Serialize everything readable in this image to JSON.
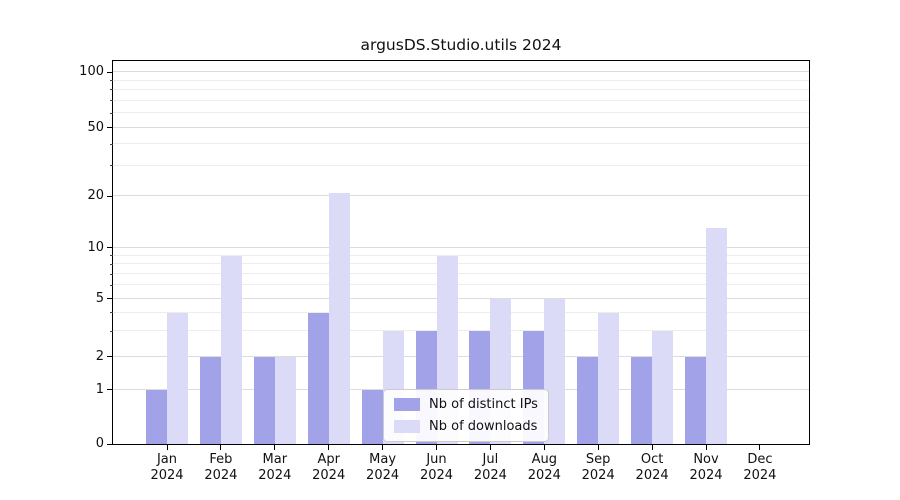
{
  "title": "argusDS.Studio.utils 2024",
  "chart_data": {
    "type": "bar",
    "title": "argusDS.Studio.utils 2024",
    "categories": [
      "Jan 2024",
      "Feb 2024",
      "Mar 2024",
      "Apr 2024",
      "May 2024",
      "Jun 2024",
      "Jul 2024",
      "Aug 2024",
      "Sep 2024",
      "Oct 2024",
      "Nov 2024",
      "Dec 2024"
    ],
    "series": [
      {
        "name": "Nb of distinct IPs",
        "color": "#a2a2e9",
        "values": [
          1,
          2,
          2,
          4,
          1,
          3,
          3,
          3,
          2,
          2,
          2,
          0
        ]
      },
      {
        "name": "Nb of downloads",
        "color": "#dbdbf8",
        "values": [
          4,
          9,
          2,
          21,
          3,
          9,
          5,
          5,
          4,
          3,
          13,
          0
        ]
      }
    ],
    "xlabel": "",
    "ylabel": "",
    "y_axis": {
      "scale": "log-like",
      "ticks": [
        0,
        1,
        2,
        5,
        10,
        20,
        50,
        100
      ],
      "minor_gridlines": [
        3,
        4,
        6,
        7,
        8,
        9,
        30,
        40,
        60,
        70,
        80,
        90
      ],
      "range": [
        0,
        110
      ]
    },
    "grid": "horizontal",
    "legend": {
      "position": "lower-center-inside",
      "items": [
        {
          "label": "Nb of distinct IPs",
          "color": "#a2a2e9"
        },
        {
          "label": "Nb of downloads",
          "color": "#dbdbf8"
        }
      ]
    }
  }
}
